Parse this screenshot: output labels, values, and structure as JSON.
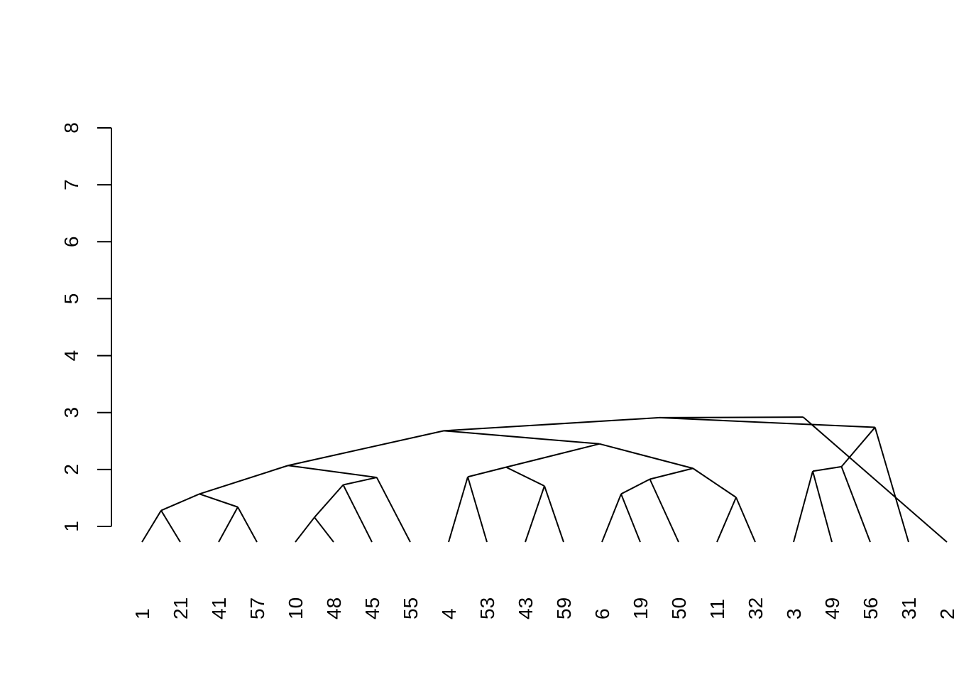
{
  "chart_data": {
    "type": "dendrogram",
    "title": "",
    "xlabel": "",
    "ylabel": "",
    "ylim": [
      1,
      8
    ],
    "yticks": [
      "1",
      "2",
      "3",
      "4",
      "5",
      "6",
      "7",
      "8"
    ],
    "leaves": [
      "1",
      "21",
      "41",
      "57",
      "10",
      "48",
      "45",
      "55",
      "4",
      "53",
      "43",
      "59",
      "6",
      "19",
      "50",
      "11",
      "32",
      "3",
      "49",
      "56",
      "31",
      "2"
    ],
    "nodes": [
      {
        "id": "a",
        "children": [
          "L0",
          "L1"
        ],
        "height": 1.28
      },
      {
        "id": "b",
        "children": [
          "L2",
          "L3"
        ],
        "height": 1.34
      },
      {
        "id": "c",
        "children": [
          "a",
          "b"
        ],
        "height": 1.57
      },
      {
        "id": "d",
        "children": [
          "L4",
          "L5"
        ],
        "height": 1.16
      },
      {
        "id": "e",
        "children": [
          "d",
          "L6"
        ],
        "height": 1.73
      },
      {
        "id": "f",
        "children": [
          "e",
          "L7"
        ],
        "height": 1.86
      },
      {
        "id": "g",
        "children": [
          "c",
          "f"
        ],
        "height": 2.07
      },
      {
        "id": "h",
        "children": [
          "L8",
          "L9"
        ],
        "height": 1.87
      },
      {
        "id": "i",
        "children": [
          "L10",
          "L11"
        ],
        "height": 1.71
      },
      {
        "id": "j",
        "children": [
          "h",
          "i"
        ],
        "height": 2.04
      },
      {
        "id": "k",
        "children": [
          "L12",
          "L13"
        ],
        "height": 1.57
      },
      {
        "id": "l",
        "children": [
          "k",
          "L14"
        ],
        "height": 1.83
      },
      {
        "id": "m",
        "children": [
          "L15",
          "L16"
        ],
        "height": 1.51
      },
      {
        "id": "n",
        "children": [
          "l",
          "m"
        ],
        "height": 2.02
      },
      {
        "id": "o",
        "children": [
          "j",
          "n"
        ],
        "height": 2.45
      },
      {
        "id": "p",
        "children": [
          "L17",
          "L18"
        ],
        "height": 1.97
      },
      {
        "id": "q",
        "children": [
          "p",
          "L19"
        ],
        "height": 2.05
      },
      {
        "id": "r",
        "children": [
          "L20",
          "q"
        ],
        "height": 2.74
      },
      {
        "id": "s",
        "children": [
          "g",
          "o"
        ],
        "height": 2.68
      },
      {
        "id": "t",
        "children": [
          "s",
          "r"
        ],
        "height": 2.91
      },
      {
        "id": "u",
        "children": [
          "t",
          "L21"
        ],
        "height": 2.92
      }
    ]
  }
}
